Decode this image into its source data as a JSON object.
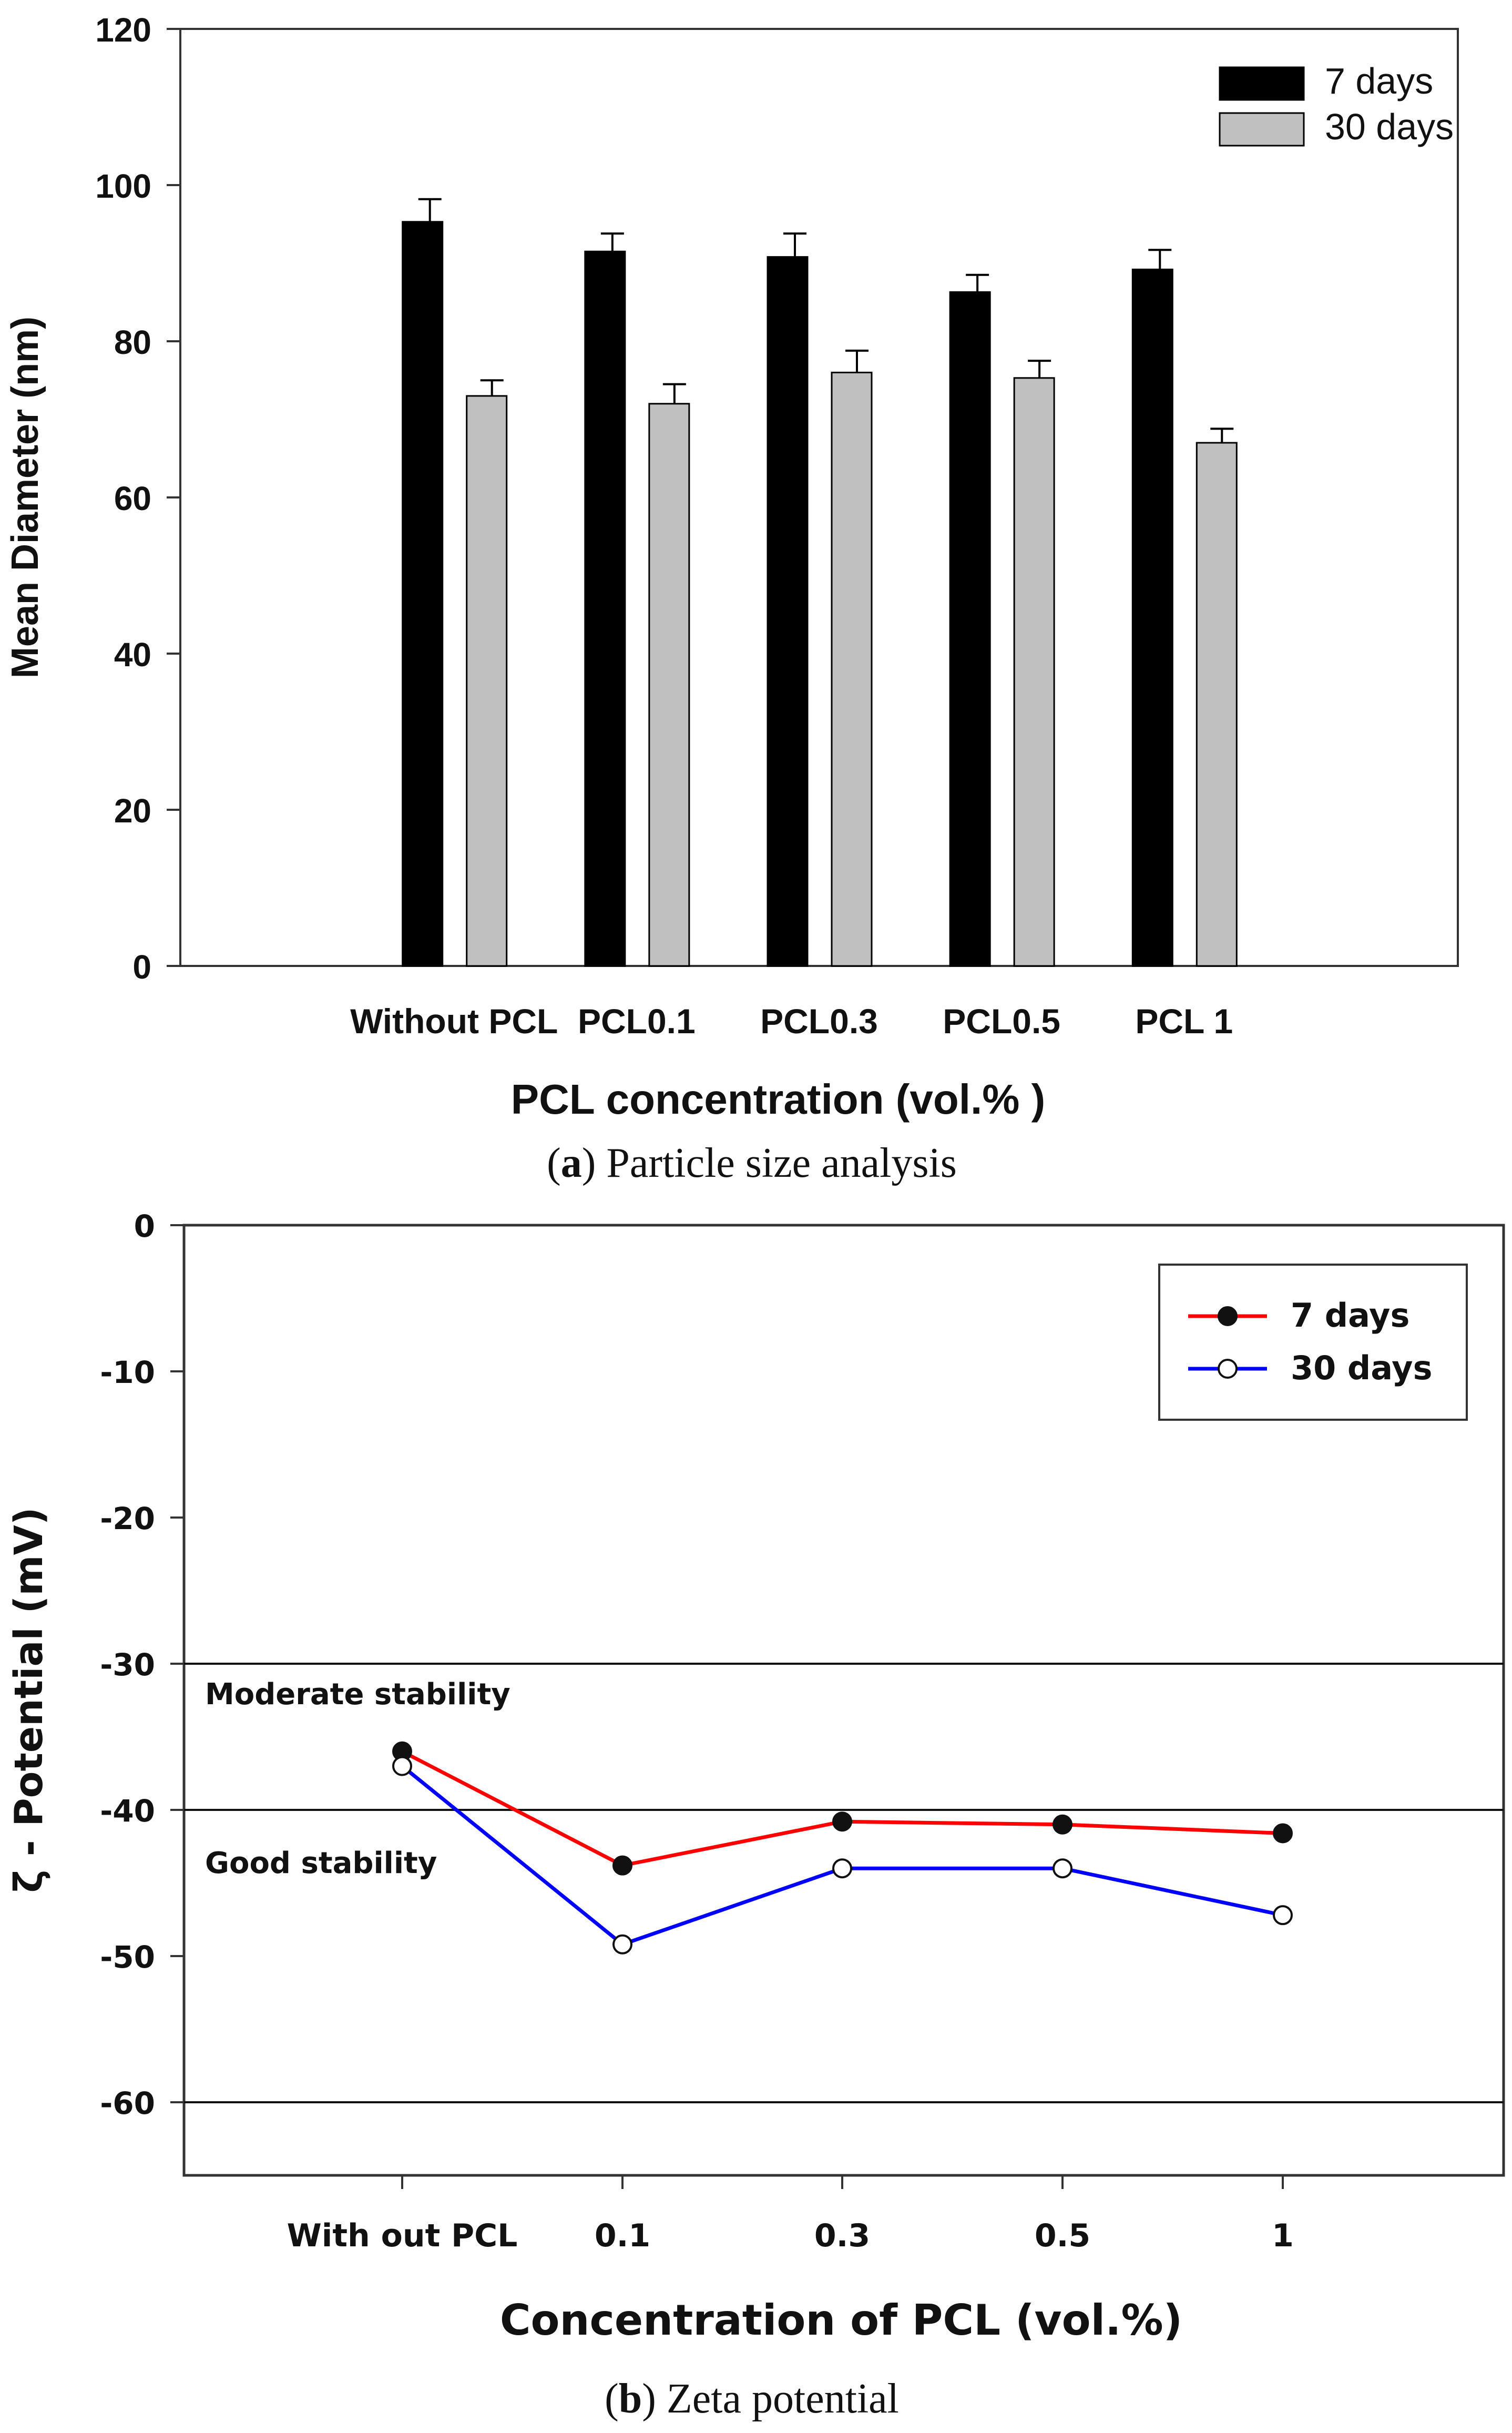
{
  "chart_data": [
    {
      "type": "bar",
      "title": "",
      "xlabel": "PCL concentration (vol.% )",
      "ylabel": "Mean Diameter (nm)",
      "ylim": [
        0,
        120
      ],
      "yticks": [
        "0",
        "20",
        "40",
        "60",
        "80",
        "100",
        "120"
      ],
      "categories": [
        "Without PCL",
        "PCL0.1",
        "PCL0.3",
        "PCL0.5",
        "PCL 1"
      ],
      "series": [
        {
          "name": "7 days",
          "color": "#000000",
          "values": [
            95.3,
            91.5,
            90.8,
            86.3,
            89.2
          ],
          "errors": [
            2.9,
            2.3,
            3.0,
            2.2,
            2.5
          ]
        },
        {
          "name": "30 days",
          "color": "#c0c0c0",
          "values": [
            73.0,
            72.0,
            76.0,
            75.3,
            67.0
          ],
          "errors": [
            2.0,
            2.5,
            2.8,
            2.2,
            1.8
          ]
        }
      ],
      "legend_position": "top-right",
      "caption": {
        "letter": "a",
        "text": " Particle size analysis"
      }
    },
    {
      "type": "line",
      "title": "",
      "xlabel": "Concentration of PCL (vol.%)",
      "ylabel": "ζ  - Potential (mV)",
      "ylim": [
        -65,
        0
      ],
      "yticks": [
        "0",
        "-10",
        "-20",
        "-30",
        "-40",
        "-50",
        "-60"
      ],
      "categories": [
        "With out PCL",
        "0.1",
        "0.3",
        "0.5",
        "1"
      ],
      "series": [
        {
          "name": "7 days",
          "color": "#ff0000",
          "marker": "filled-circle",
          "values": [
            -36.0,
            -43.8,
            -40.8,
            -41.0,
            -41.6
          ]
        },
        {
          "name": "30 days",
          "color": "#0000ff",
          "marker": "open-circle",
          "values": [
            -37.0,
            -49.2,
            -44.0,
            -44.0,
            -47.2
          ]
        }
      ],
      "reference_lines": [
        -30,
        -40,
        -60
      ],
      "annotations": [
        "Moderate stability",
        "Good stability"
      ],
      "legend_position": "top-right",
      "caption": {
        "letter": "b",
        "text": " Zeta potential"
      }
    }
  ]
}
